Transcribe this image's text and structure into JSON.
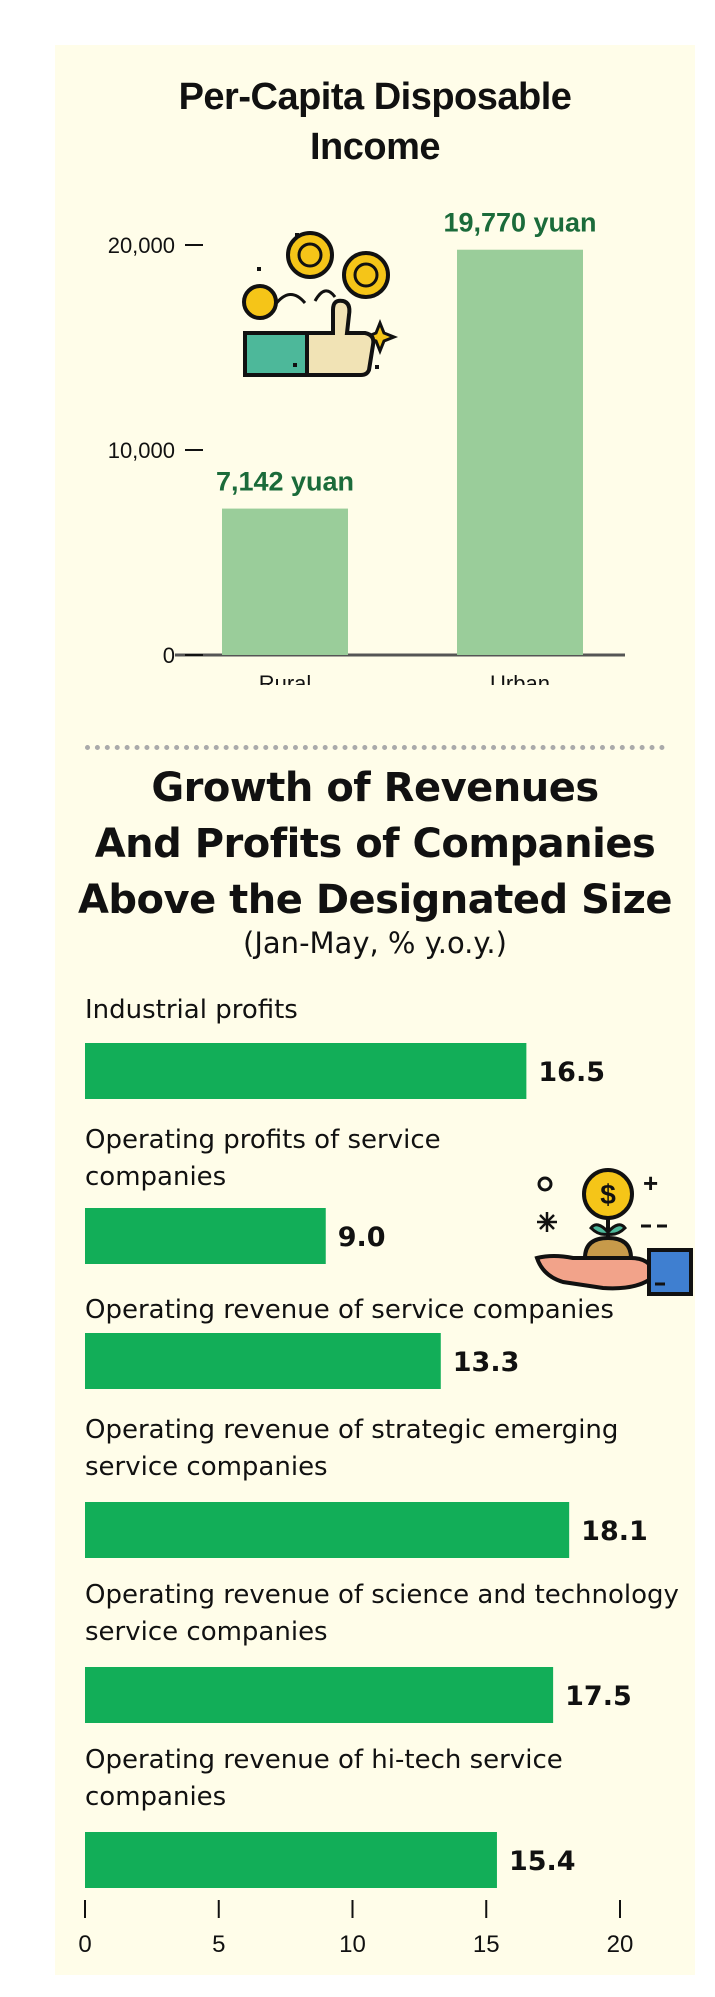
{
  "colors": {
    "card_bg": "#fffde9",
    "bar_light_green": "#9acd9a",
    "bar_green": "#12ae58",
    "label_dark_green": "#1b6b3a",
    "axis": "#555555"
  },
  "icons": [
    "coins-thumbs-up-icon",
    "money-plant-hand-icon"
  ],
  "chart_data": [
    {
      "type": "bar",
      "title": "Per-Capita Disposable Income",
      "categories": [
        "Rural",
        "Urban"
      ],
      "values": [
        7142,
        19770
      ],
      "value_labels": [
        "7,142 yuan",
        "19,770 yuan"
      ],
      "yticks": [
        0,
        10000,
        20000
      ],
      "ytick_labels": [
        "0",
        "10,000",
        "20,000"
      ],
      "ylim": [
        0,
        20000
      ],
      "grid": false,
      "legend": false
    },
    {
      "type": "bar",
      "orientation": "horizontal",
      "title": "Growth of Revenues And Profits of Companies Above the Designated Size",
      "subtitle": "(Jan-May, % y.o.y.)",
      "categories": [
        "Industrial profits",
        "Operating profits of service companies",
        "Operating revenue of service companies",
        "Operating revenue of strategic emerging service companies",
        "Operating revenue of science and technology service companies",
        "Operating revenue of hi-tech service companies"
      ],
      "values": [
        16.5,
        9.0,
        13.3,
        18.1,
        17.5,
        15.4
      ],
      "value_labels": [
        "16.5",
        "9.0",
        "13.3",
        "18.1",
        "17.5",
        "15.4"
      ],
      "xticks": [
        0,
        5,
        10,
        15,
        20
      ],
      "xtick_labels": [
        "0",
        "5",
        "10",
        "15",
        "20"
      ],
      "xlim": [
        0,
        20
      ],
      "grid": false,
      "legend": false
    }
  ]
}
